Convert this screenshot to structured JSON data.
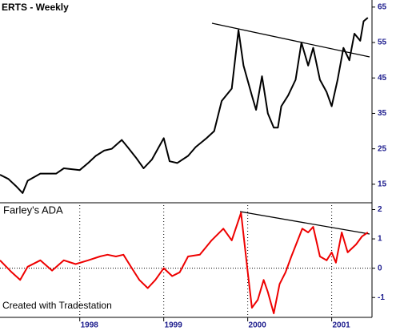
{
  "chart_data": [
    {
      "type": "line",
      "title": "ERTS - Weekly",
      "x": [
        1997.05,
        1997.15,
        1997.24,
        1997.32,
        1997.38,
        1997.53,
        1997.72,
        1997.81,
        1998.0,
        1998.1,
        1998.19,
        1998.29,
        1998.38,
        1998.5,
        1998.57,
        1998.67,
        1998.76,
        1998.86,
        1999.0,
        1999.07,
        1999.16,
        1999.29,
        1999.38,
        1999.51,
        1999.6,
        1999.69,
        1999.81,
        1999.89,
        1999.95,
        2000.05,
        2000.1,
        2000.17,
        2000.24,
        2000.31,
        2000.36,
        2000.4,
        2000.48,
        2000.57,
        2000.64,
        2000.72,
        2000.78,
        2000.86,
        2000.94,
        2001.0,
        2001.07,
        2001.14,
        2001.21,
        2001.27,
        2001.34,
        2001.38,
        2001.43
      ],
      "series": [
        {
          "color": "#000000",
          "values": [
            17.7,
            16.5,
            14.5,
            12.5,
            16,
            18,
            18,
            19.5,
            19,
            21,
            23,
            24.5,
            25,
            27.5,
            25.5,
            22.5,
            19.5,
            22,
            28,
            21.5,
            21,
            23,
            25.5,
            28,
            30,
            38.5,
            42,
            58.5,
            48.5,
            40,
            36,
            45.5,
            35,
            31,
            31,
            37,
            40,
            44.5,
            55,
            48.5,
            53.5,
            44.5,
            41,
            37,
            44.5,
            53.5,
            50,
            57.5,
            55.5,
            61,
            62
          ]
        }
      ],
      "xlim": [
        1997.05,
        2001.48
      ],
      "ylim": [
        10,
        67
      ],
      "yticks": [
        15,
        25,
        35,
        45,
        55,
        65
      ]
    },
    {
      "type": "line",
      "title": "Farley's ADA",
      "note": "Created with Tradestation",
      "x": [
        1997.05,
        1997.19,
        1997.29,
        1997.38,
        1997.53,
        1997.67,
        1997.81,
        1997.95,
        1998.1,
        1998.24,
        1998.33,
        1998.43,
        1998.52,
        1998.62,
        1998.71,
        1998.81,
        1998.9,
        1999.0,
        1999.1,
        1999.19,
        1999.29,
        1999.43,
        1999.57,
        1999.71,
        1999.81,
        1999.92,
        2000.0,
        2000.05,
        2000.12,
        2000.19,
        2000.24,
        2000.31,
        2000.38,
        2000.45,
        2000.52,
        2000.65,
        2000.72,
        2000.78,
        2000.86,
        2000.94,
        2001.0,
        2001.05,
        2001.12,
        2001.19,
        2001.29,
        2001.36,
        2001.43
      ],
      "series": [
        {
          "color": "#ee0000",
          "values": [
            0.27,
            -0.14,
            -0.4,
            0.05,
            0.27,
            -0.08,
            0.27,
            0.14,
            0.27,
            0.4,
            0.46,
            0.4,
            0.46,
            0,
            -0.4,
            -0.68,
            -0.4,
            0,
            -0.27,
            -0.14,
            0.4,
            0.46,
            0.95,
            1.35,
            0.95,
            1.89,
            -0.14,
            -1.35,
            -1.08,
            -0.4,
            -0.81,
            -1.54,
            -0.54,
            -0.14,
            0.4,
            1.35,
            1.22,
            1.41,
            0.4,
            0.27,
            0.54,
            0.19,
            1.22,
            0.54,
            0.81,
            1.08,
            1.22
          ]
        }
      ],
      "xlim": [
        1997.05,
        2001.48
      ],
      "ylim": [
        -1.65,
        2.15
      ],
      "yticks": [
        -1,
        0,
        1,
        2
      ],
      "xticks": [
        1998,
        1999,
        2000,
        2001
      ],
      "grid": true,
      "hline": 0
    }
  ]
}
